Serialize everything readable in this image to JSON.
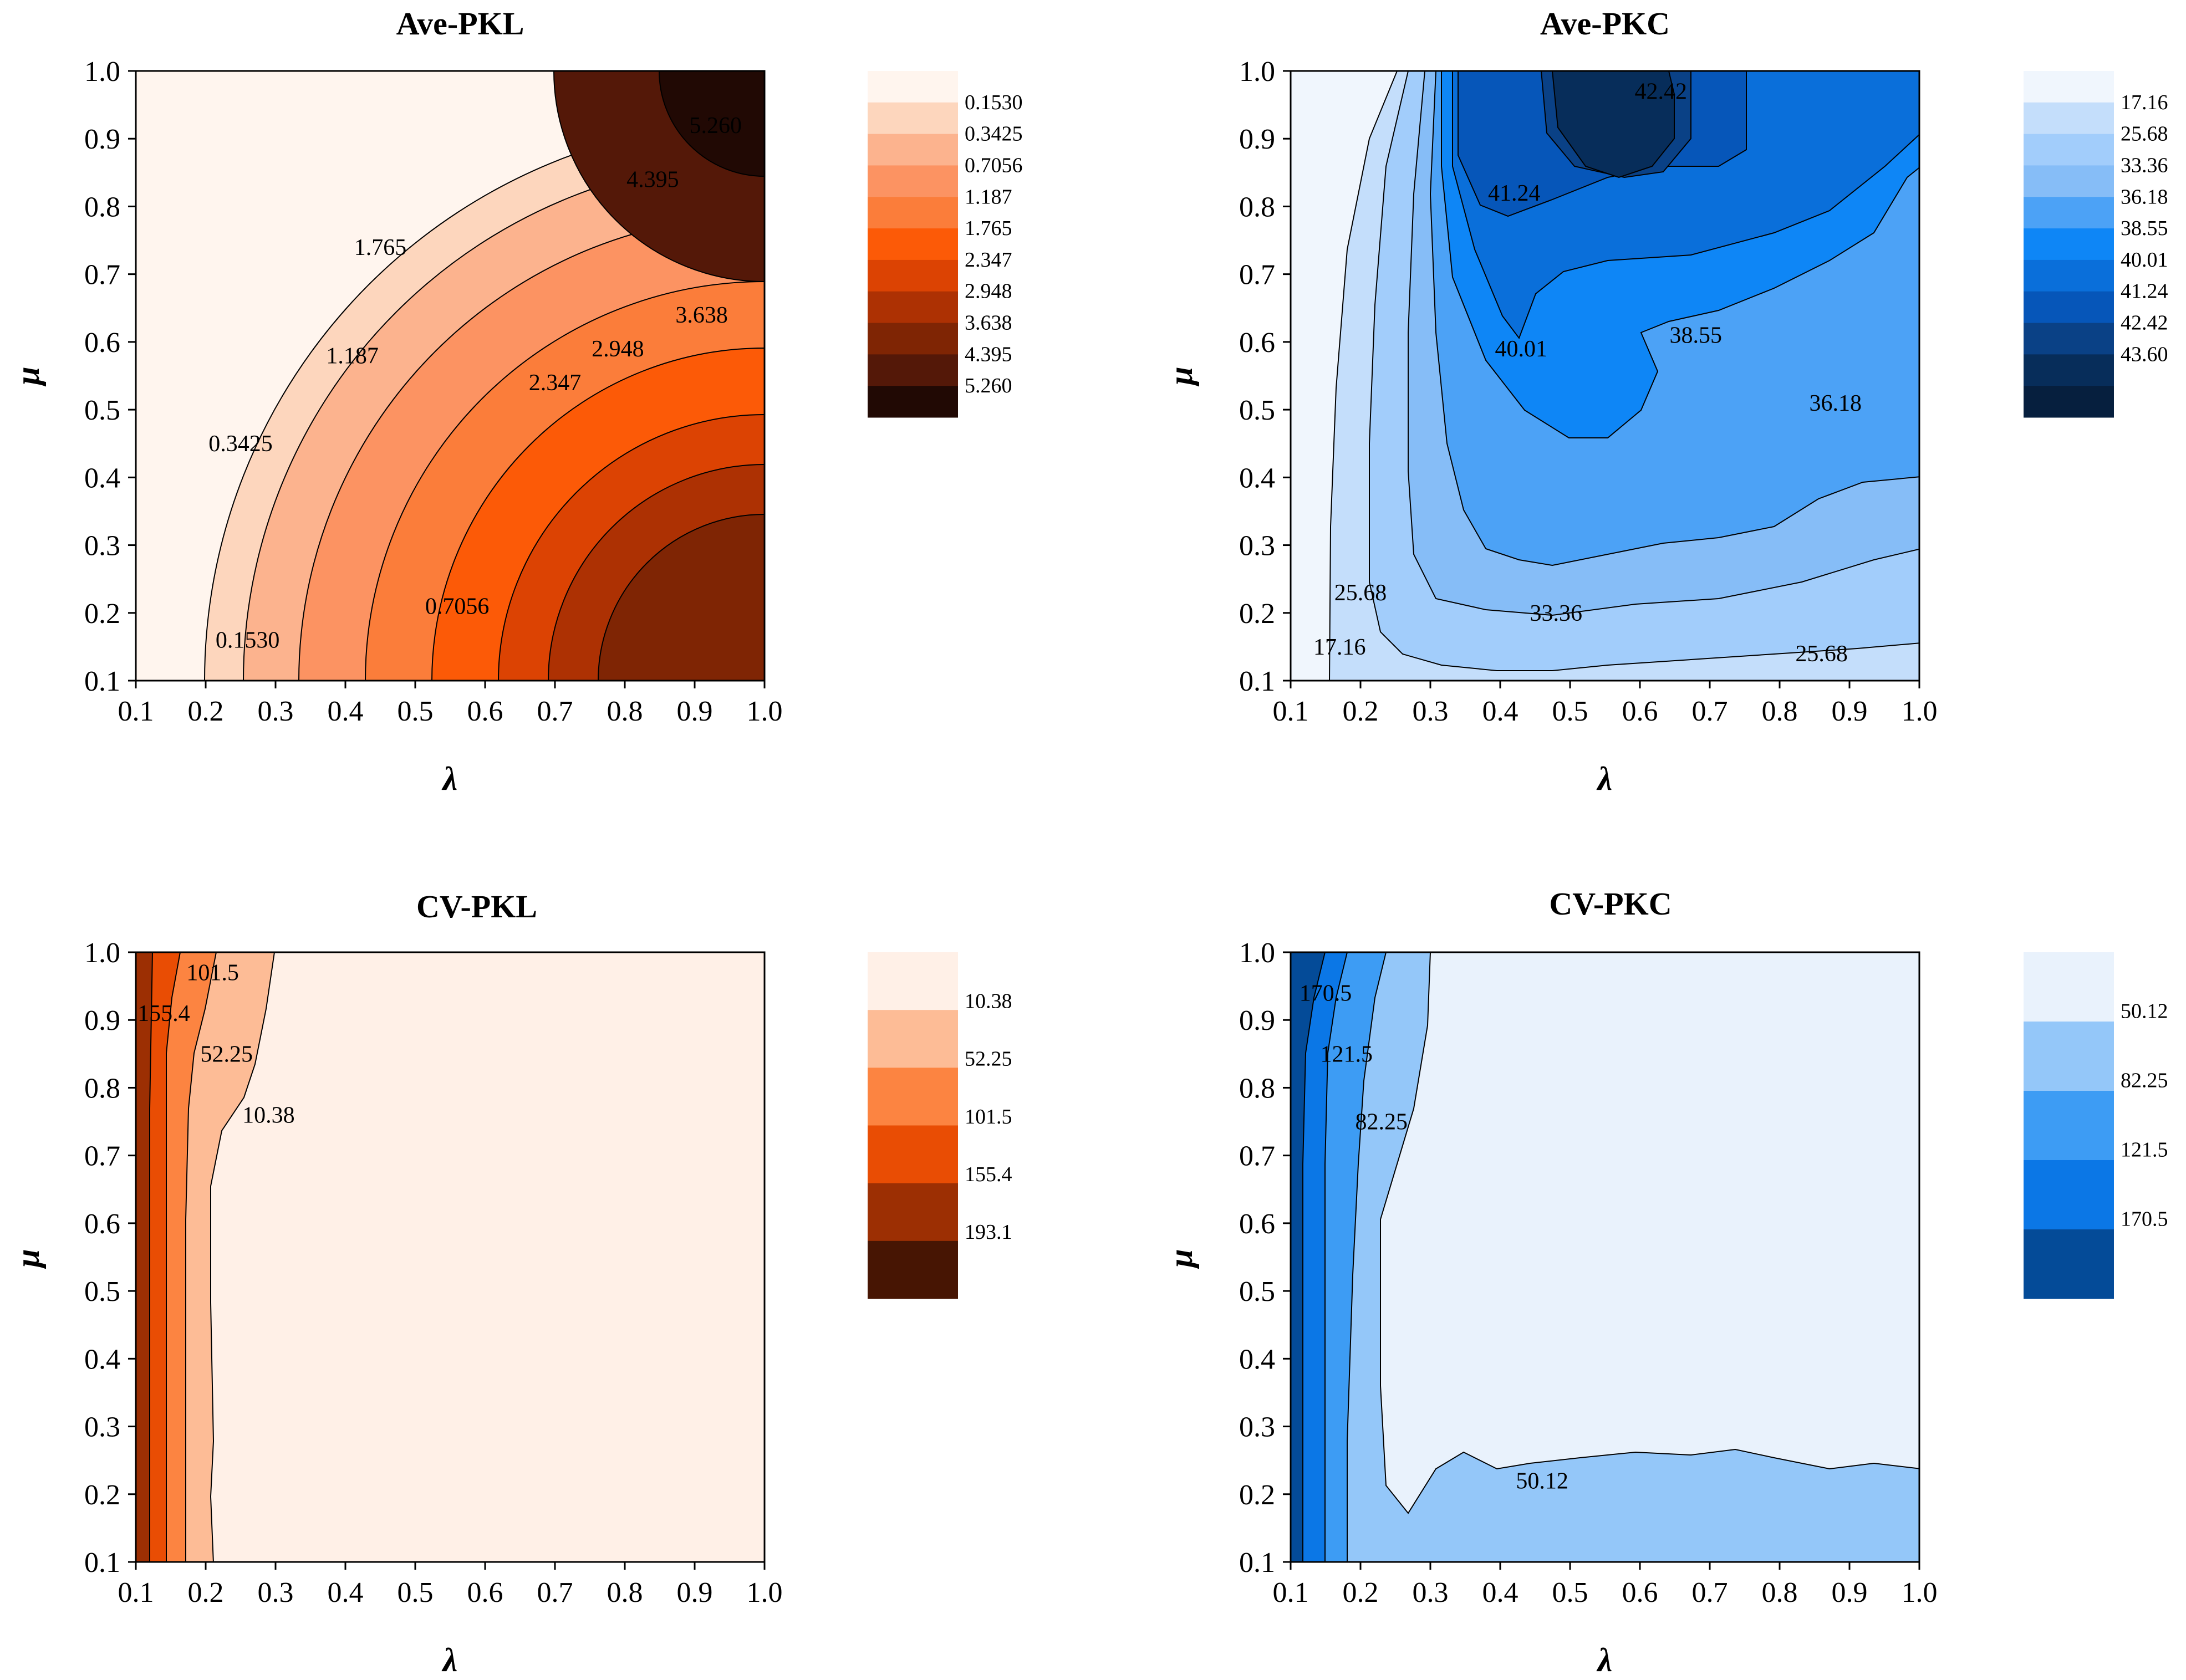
{
  "colors": {
    "orange": [
      "#fff5ee",
      "#fdd6bd",
      "#fcb38e",
      "#fc9362",
      "#fb7d3a",
      "#fc5a07",
      "#dc4303",
      "#ad3103",
      "#7f2504",
      "#541808",
      "#210904"
    ],
    "blue": [
      "#f0f6fd",
      "#c4defb",
      "#a2cdfb",
      "#86bdf7",
      "#4ca2f6",
      "#0e86f6",
      "#0a6fda",
      "#0656b9",
      "#0a4186",
      "#072d5a",
      "#061f3e"
    ],
    "cv_orange": [
      "#fff0e7",
      "#fdbc96",
      "#fc8441",
      "#e94d04",
      "#9c2f03",
      "#471503"
    ],
    "cv_blue": [
      "#e9f2fc",
      "#94c7f9",
      "#3d9cf4",
      "#0b77e6",
      "#044b98"
    ]
  },
  "chart_data": [
    {
      "id": "ave-pkl",
      "type": "contour",
      "title": "Ave-PKL",
      "xlabel": "λ",
      "ylabel": "μ",
      "xlim": [
        0.1,
        1.0
      ],
      "ylim": [
        0.1,
        1.0
      ],
      "xticks": [
        "0.1",
        "0.2",
        "0.3",
        "0.4",
        "0.5",
        "0.6",
        "0.7",
        "0.8",
        "0.9",
        "1.0"
      ],
      "yticks": [
        "0.1",
        "0.2",
        "0.3",
        "0.4",
        "0.5",
        "0.6",
        "0.7",
        "0.8",
        "0.9",
        "1.0"
      ],
      "levels": [
        "0.1530",
        "0.3425",
        "0.7056",
        "1.187",
        "1.765",
        "2.347",
        "2.948",
        "3.638",
        "4.395",
        "5.260"
      ],
      "palette": "orange",
      "contour_labels": [
        {
          "text": "0.1530",
          "x": 0.26,
          "y": 0.16
        },
        {
          "text": "0.3425",
          "x": 0.25,
          "y": 0.45
        },
        {
          "text": "0.7056",
          "x": 0.56,
          "y": 0.21
        },
        {
          "text": "1.187",
          "x": 0.41,
          "y": 0.58
        },
        {
          "text": "1.765",
          "x": 0.45,
          "y": 0.74
        },
        {
          "text": "2.347",
          "x": 0.7,
          "y": 0.54
        },
        {
          "text": "2.948",
          "x": 0.79,
          "y": 0.59
        },
        {
          "text": "3.638",
          "x": 0.91,
          "y": 0.64
        },
        {
          "text": "4.395",
          "x": 0.84,
          "y": 0.84
        },
        {
          "text": "5.260",
          "x": 0.93,
          "y": 0.92
        }
      ]
    },
    {
      "id": "ave-pkc",
      "type": "contour",
      "title": "Ave-PKC",
      "xlabel": "λ",
      "ylabel": "μ",
      "xlim": [
        0.1,
        1.0
      ],
      "ylim": [
        0.1,
        1.0
      ],
      "xticks": [
        "0.1",
        "0.2",
        "0.3",
        "0.4",
        "0.5",
        "0.6",
        "0.7",
        "0.8",
        "0.9",
        "1.0"
      ],
      "yticks": [
        "0.1",
        "0.2",
        "0.3",
        "0.4",
        "0.5",
        "0.6",
        "0.7",
        "0.8",
        "0.9",
        "1.0"
      ],
      "levels": [
        "17.16",
        "25.68",
        "33.36",
        "36.18",
        "38.55",
        "40.01",
        "41.24",
        "42.42",
        "43.60"
      ],
      "palette": "blue",
      "contour_labels": [
        {
          "text": "17.16",
          "x": 0.17,
          "y": 0.15
        },
        {
          "text": "25.68",
          "x": 0.2,
          "y": 0.23
        },
        {
          "text": "33.36",
          "x": 0.48,
          "y": 0.2
        },
        {
          "text": "25.68",
          "x": 0.86,
          "y": 0.14
        },
        {
          "text": "36.18",
          "x": 0.88,
          "y": 0.51
        },
        {
          "text": "38.55",
          "x": 0.68,
          "y": 0.61
        },
        {
          "text": "40.01",
          "x": 0.43,
          "y": 0.59
        },
        {
          "text": "41.24",
          "x": 0.42,
          "y": 0.82
        },
        {
          "text": "42.42",
          "x": 0.63,
          "y": 0.97
        }
      ]
    },
    {
      "id": "cv-pkl",
      "type": "contour",
      "title": "CV-PKL",
      "xlabel": "λ",
      "ylabel": "μ",
      "xlim": [
        0.1,
        1.0
      ],
      "ylim": [
        0.1,
        1.0
      ],
      "xticks": [
        "0.1",
        "0.2",
        "0.3",
        "0.4",
        "0.5",
        "0.6",
        "0.7",
        "0.8",
        "0.9",
        "1.0"
      ],
      "yticks": [
        "0.1",
        "0.2",
        "0.3",
        "0.4",
        "0.5",
        "0.6",
        "0.7",
        "0.8",
        "0.9",
        "1.0"
      ],
      "levels": [
        "10.38",
        "52.25",
        "101.5",
        "155.4",
        "193.1"
      ],
      "palette": "cv_orange",
      "contour_labels": [
        {
          "text": "101.5",
          "x": 0.21,
          "y": 0.97
        },
        {
          "text": "155.4",
          "x": 0.14,
          "y": 0.91
        },
        {
          "text": "52.25",
          "x": 0.23,
          "y": 0.85
        },
        {
          "text": "10.38",
          "x": 0.29,
          "y": 0.76
        }
      ]
    },
    {
      "id": "cv-pkc",
      "type": "contour",
      "title": "CV-PKC",
      "xlabel": "λ",
      "ylabel": "μ",
      "xlim": [
        0.1,
        1.0
      ],
      "ylim": [
        0.1,
        1.0
      ],
      "xticks": [
        "0.1",
        "0.2",
        "0.3",
        "0.4",
        "0.5",
        "0.6",
        "0.7",
        "0.8",
        "0.9",
        "1.0"
      ],
      "yticks": [
        "0.1",
        "0.2",
        "0.3",
        "0.4",
        "0.5",
        "0.6",
        "0.7",
        "0.8",
        "0.9",
        "1.0"
      ],
      "levels": [
        "50.12",
        "82.25",
        "121.5",
        "170.5"
      ],
      "palette": "cv_blue",
      "contour_labels": [
        {
          "text": "170.5",
          "x": 0.15,
          "y": 0.94
        },
        {
          "text": "121.5",
          "x": 0.18,
          "y": 0.85
        },
        {
          "text": "82.25",
          "x": 0.23,
          "y": 0.75
        },
        {
          "text": "50.12",
          "x": 0.46,
          "y": 0.22
        }
      ]
    }
  ]
}
